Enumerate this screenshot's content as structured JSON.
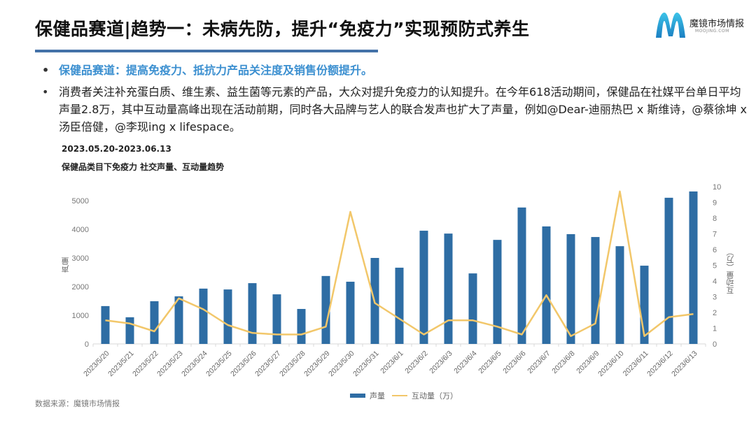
{
  "header": {
    "title": "保健品赛道|趋势一：未病先防，提升“免疫力”实现预防式养生",
    "logo_text": "魔镜市场情报",
    "logo_sub": "MOOJING.COM",
    "accent_color": "#4472a8"
  },
  "bullets": [
    {
      "text": "保健品赛道：提高免疫力、抵抗力产品关注度及销售份额提升。",
      "highlight": true
    },
    {
      "text": "消费者关注补充蛋白质、维生素、益生菌等元素的产品，大众对提升免疫力的认知提升。在今年618活动期间，保健品在社媒平台单日平均声量2.8万，其中互动量高峰出现在活动前期，同时各大品牌与艺人的联合发声也扩大了声量，例如@Dear-迪丽热巴 x 斯维诗，@蔡徐坤 x 汤臣倍健，@李现ing x lifespace。",
      "highlight": false
    }
  ],
  "chart_header": {
    "date_range": "2023.05.20-2023.06.13",
    "subtitle": "保健品类目下免疫力 社交声量、互动量趋势"
  },
  "footer": {
    "source": "数据来源：魔镜市场情报"
  },
  "chart_data": {
    "type": "bar",
    "title": "保健品类目下免疫力 社交声量、互动量趋势",
    "subtitle": "2023.05.20-2023.06.13",
    "categories": [
      "2023/5/20",
      "2023/5/21",
      "2023/5/22",
      "2023/5/23",
      "2023/5/24",
      "2023/5/25",
      "2023/5/26",
      "2023/5/27",
      "2023/5/28",
      "2023/5/29",
      "2023/5/30",
      "2023/5/31",
      "2023/6/1",
      "2023/6/2",
      "2023/6/3",
      "2023/6/4",
      "2023/6/5",
      "2023/6/6",
      "2023/6/7",
      "2023/6/8",
      "2023/6/9",
      "2023/6/10",
      "2023/6/11",
      "2023/6/12",
      "2023/6/13"
    ],
    "series": [
      {
        "name": "声量",
        "type": "bar",
        "axis": "left",
        "color": "#2e6da4",
        "values": [
          1320,
          930,
          1490,
          1660,
          1930,
          1900,
          2120,
          1730,
          1220,
          2370,
          2170,
          3000,
          2660,
          3950,
          3850,
          2460,
          3630,
          4760,
          4100,
          3830,
          3730,
          3410,
          2730,
          5100,
          5320
        ]
      },
      {
        "name": "互动量（万）",
        "type": "line",
        "axis": "right",
        "color": "#f2c76a",
        "values": [
          1.5,
          1.3,
          0.8,
          2.9,
          2.2,
          1.2,
          0.7,
          0.6,
          0.6,
          1.1,
          8.4,
          2.6,
          1.6,
          0.6,
          1.5,
          1.5,
          1.1,
          0.6,
          3.1,
          0.5,
          1.3,
          9.7,
          0.5,
          1.7,
          1.9
        ]
      }
    ],
    "xlabel": "",
    "ylabel": "声量",
    "ylabel_right": "互动量（万）",
    "ylim": [
      0,
      5500
    ],
    "yticks": [
      0,
      1000,
      2000,
      3000,
      4000,
      5000
    ],
    "ylim_right": [
      0,
      10
    ],
    "yticks_right": [
      0,
      1,
      2,
      3,
      4,
      5,
      6,
      7,
      8,
      9,
      10
    ],
    "grid": false,
    "legend_position": "bottom",
    "legend": [
      "声量",
      "互动量（万）"
    ]
  }
}
